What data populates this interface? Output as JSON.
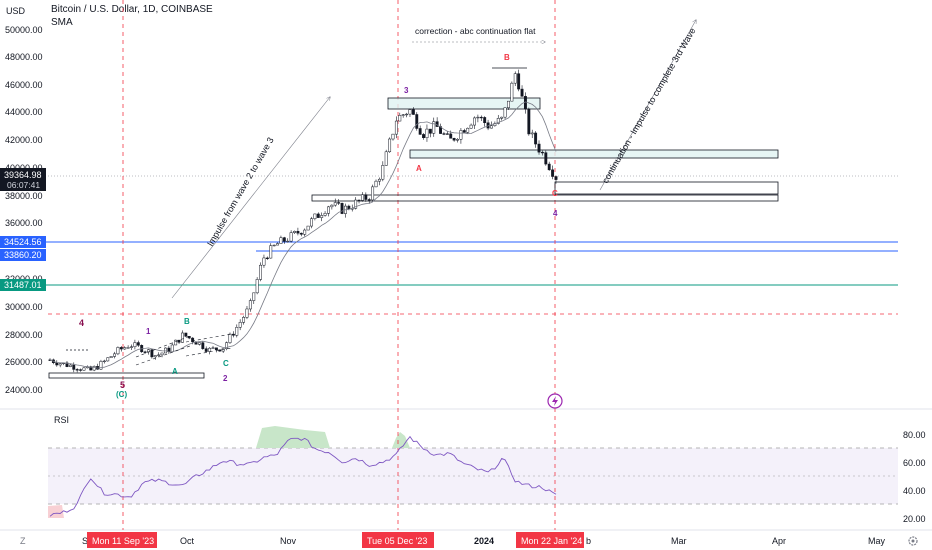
{
  "header": {
    "symbol_title": "Bitcoin / U.S. Dollar, 1D, COINBASE",
    "indicator": "SMA",
    "currency": "USD"
  },
  "price_axis": {
    "ticks": [
      "50000.00",
      "48000.00",
      "46000.00",
      "44000.00",
      "42000.00",
      "40000.00",
      "38000.00",
      "36000.00",
      "32000.00",
      "30000.00",
      "28000.00",
      "26000.00",
      "24000.00"
    ],
    "current_price": "39364.98",
    "countdown": "06:07:41",
    "label_blue_1": "34524.56",
    "label_blue_2": "33860.20",
    "label_green": "31487.01"
  },
  "rsi_axis": {
    "title": "RSI",
    "ticks": [
      "80.00",
      "60.00",
      "40.00",
      "20.00"
    ]
  },
  "time_axis": {
    "z_button": "Z",
    "ticks": [
      "Oct",
      "Nov",
      "2024",
      "Mar",
      "Apr",
      "May"
    ],
    "partial_left": "S",
    "partial_feb": "b",
    "marker_1": "Mon 11 Sep '23",
    "marker_2": "Tue 05 Dec '23",
    "marker_3": "Mon 22 Jan '24",
    "settings_icon": "gear-icon"
  },
  "annotations": {
    "impulse_text": "Impulse from wave 2 to wave 3",
    "correction_text": "correction - abc continuation flat",
    "continuation_text": "continuation - Impulse to complete 3rd Wave",
    "wave_4_left": "4",
    "wave_5": "5",
    "wave_c_paren": "(C)",
    "wave_1": "1",
    "wave_a_green": "A",
    "wave_b_green": "B",
    "wave_c_green": "C",
    "wave_2": "2",
    "wave_3": "3",
    "wave_a_red": "A",
    "wave_b_red": "B",
    "wave_c_red": "C",
    "wave_4_right": "4"
  },
  "chart_data": {
    "type": "candlestick",
    "title": "Bitcoin / U.S. Dollar, 1D, COINBASE",
    "ylim": [
      23000,
      51000
    ],
    "yscale": "linear",
    "horizontal_levels": [
      {
        "price": 34524.56,
        "color": "#2962ff"
      },
      {
        "price": 33860.2,
        "color": "#2962ff"
      },
      {
        "price": 31487.01,
        "color": "#089981"
      },
      {
        "price": 29400,
        "color": "#f23645",
        "style": "dashed"
      }
    ],
    "boxes": [
      {
        "top": 45000,
        "bottom": 44000
      },
      {
        "top": 41300,
        "bottom": 40700
      },
      {
        "top": 39000,
        "bottom": 38200
      },
      {
        "top": 38050,
        "bottom": 37500
      }
    ],
    "approx_close_path": [
      26200,
      25900,
      25700,
      25400,
      26000,
      26800,
      27300,
      27000,
      26500,
      27000,
      28000,
      27500,
      26900,
      27100,
      28500,
      30000,
      33500,
      34500,
      35000,
      35600,
      36500,
      37400,
      37000,
      37500,
      38000,
      40000,
      43500,
      44200,
      42500,
      43000,
      41900,
      42800,
      43800,
      43000,
      43500,
      47000,
      42500,
      41000,
      39365
    ],
    "rsi": {
      "levels": [
        70,
        50,
        30
      ],
      "ylim": [
        15,
        90
      ],
      "approx_values": [
        22,
        24,
        29,
        50,
        38,
        37,
        35,
        45,
        47,
        45,
        43,
        50,
        55,
        61,
        59,
        58,
        63,
        65,
        76,
        77,
        69,
        67,
        60,
        63,
        58,
        60,
        65,
        78,
        70,
        65,
        66,
        59,
        55,
        52,
        63,
        46,
        43,
        42,
        36
      ]
    }
  }
}
